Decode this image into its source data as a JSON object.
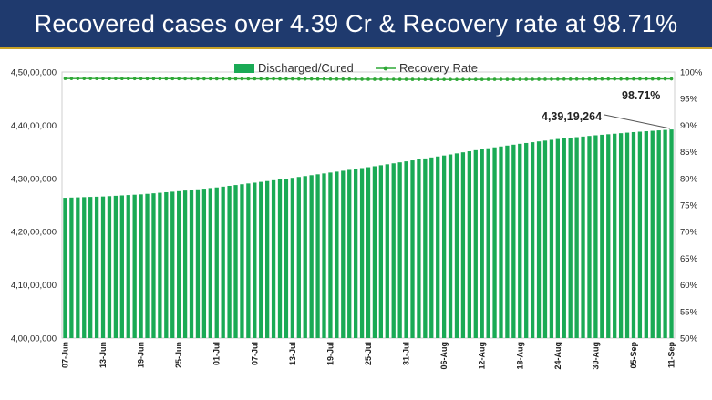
{
  "header": {
    "title": "Recovered cases over 4.39 Cr & Recovery rate at 98.71%"
  },
  "colors": {
    "banner": "#1f3a6e",
    "bar": "#1aaa55",
    "line": "#2ea836"
  },
  "chart_data": {
    "type": "bar",
    "title": "",
    "xlabel": "",
    "ylabel": "",
    "legend_position": "top",
    "ylim": [
      40000000,
      45000000
    ],
    "y2lim": [
      50,
      100
    ],
    "yticks": [
      "4,00,00,000",
      "4,10,00,000",
      "4,20,00,000",
      "4,30,00,000",
      "4,40,00,000",
      "4,50,00,000"
    ],
    "y2ticks": [
      "50%",
      "55%",
      "60%",
      "65%",
      "70%",
      "75%",
      "80%",
      "85%",
      "90%",
      "95%",
      "100%"
    ],
    "date_range": [
      "2022-06-07",
      "2022-09-11"
    ],
    "x_tick_labels": [
      "07-Jun",
      "13-Jun",
      "19-Jun",
      "25-Jun",
      "01-Jul",
      "07-Jul",
      "13-Jul",
      "19-Jul",
      "25-Jul",
      "31-Jul",
      "06-Aug",
      "12-Aug",
      "18-Aug",
      "24-Aug",
      "30-Aug",
      "05-Sep",
      "11-Sep"
    ],
    "series": [
      {
        "name": "Discharged/Cured",
        "type": "bar",
        "axis": "left",
        "anchors": [
          {
            "x": "2022-06-07",
            "y": 42636000
          },
          {
            "x": "2022-06-13",
            "y": 42660000
          },
          {
            "x": "2022-06-19",
            "y": 42700000
          },
          {
            "x": "2022-06-25",
            "y": 42760000
          },
          {
            "x": "2022-07-01",
            "y": 42830000
          },
          {
            "x": "2022-07-07",
            "y": 42920000
          },
          {
            "x": "2022-07-13",
            "y": 43010000
          },
          {
            "x": "2022-07-19",
            "y": 43110000
          },
          {
            "x": "2022-07-25",
            "y": 43210000
          },
          {
            "x": "2022-07-31",
            "y": 43320000
          },
          {
            "x": "2022-08-06",
            "y": 43430000
          },
          {
            "x": "2022-08-12",
            "y": 43550000
          },
          {
            "x": "2022-08-18",
            "y": 43650000
          },
          {
            "x": "2022-08-24",
            "y": 43740000
          },
          {
            "x": "2022-08-30",
            "y": 43810000
          },
          {
            "x": "2022-09-05",
            "y": 43870000
          },
          {
            "x": "2022-09-11",
            "y": 43919264
          }
        ]
      },
      {
        "name": "Recovery Rate",
        "type": "line",
        "axis": "right",
        "anchors": [
          {
            "x": "2022-06-07",
            "y": 98.78
          },
          {
            "x": "2022-06-25",
            "y": 98.74
          },
          {
            "x": "2022-07-13",
            "y": 98.7
          },
          {
            "x": "2022-07-25",
            "y": 98.64
          },
          {
            "x": "2022-08-06",
            "y": 98.6
          },
          {
            "x": "2022-08-18",
            "y": 98.62
          },
          {
            "x": "2022-08-30",
            "y": 98.68
          },
          {
            "x": "2022-09-11",
            "y": 98.71
          }
        ]
      }
    ],
    "annotations": {
      "last_bar": "4,39,19,264",
      "last_rate": "98.71%"
    }
  }
}
